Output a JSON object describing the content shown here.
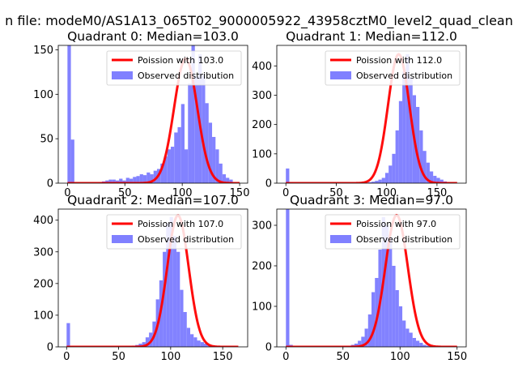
{
  "figure": {
    "suptitle": "n file: modeM0/AS1A13_065T02_9000005922_43958cztM0_level2_quad_clean"
  },
  "chart_data": [
    {
      "type": "bar",
      "title": "Quadrant 0: Median=103.0",
      "xlim": [
        -8,
        157
      ],
      "ylim": [
        0,
        155
      ],
      "xticks": [
        0,
        50,
        100,
        150
      ],
      "xtick_labels": [
        "0",
        "50",
        "100",
        "150"
      ],
      "yticks": [
        0,
        50,
        100,
        150
      ],
      "ytick_labels": [
        "0",
        "50",
        "100",
        "150"
      ],
      "legend_position": "upper right",
      "bins": {
        "start": 0,
        "width": 3,
        "counts": [
          155,
          49,
          0,
          0,
          0,
          0,
          0,
          0,
          0,
          1,
          2,
          3,
          4,
          4,
          3,
          5,
          3,
          6,
          5,
          7,
          8,
          10,
          9,
          12,
          10,
          14,
          16,
          22,
          30,
          38,
          41,
          57,
          63,
          89,
          38,
          112,
          155,
          120,
          145,
          122,
          90,
          68,
          52,
          38,
          22,
          10,
          6,
          4
        ]
      },
      "series": [
        {
          "name": "Poission with 103.0",
          "kind": "line",
          "color": "#ff0000",
          "mean": 103.0,
          "peak": 140,
          "sigma": 10.1,
          "x_range": [
            0,
            150
          ]
        },
        {
          "name": "Observed distribution",
          "kind": "hist",
          "color": "#8080ff"
        }
      ]
    },
    {
      "type": "bar",
      "title": "Quadrant 1: Median=112.0",
      "xlim": [
        -9,
        179
      ],
      "ylim": [
        0,
        470
      ],
      "xticks": [
        0,
        50,
        100,
        150
      ],
      "xtick_labels": [
        "0",
        "50",
        "100",
        "150"
      ],
      "yticks": [
        0,
        100,
        200,
        300,
        400
      ],
      "ytick_labels": [
        "0",
        "100",
        "200",
        "300",
        "400"
      ],
      "legend_position": "upper right",
      "bins": {
        "start": 0,
        "width": 3.4,
        "counts": [
          50,
          3,
          0,
          0,
          0,
          0,
          0,
          0,
          0,
          0,
          0,
          0,
          0,
          0,
          0,
          0,
          0,
          0,
          0,
          0,
          0,
          0,
          0,
          0,
          3,
          5,
          8,
          12,
          18,
          35,
          60,
          100,
          180,
          280,
          380,
          440,
          360,
          300,
          260,
          180,
          110,
          70,
          40,
          25,
          18,
          12,
          6,
          3,
          1,
          0
        ]
      },
      "series": [
        {
          "name": "Poission with 112.0",
          "kind": "line",
          "color": "#ff0000",
          "mean": 112.0,
          "peak": 440,
          "sigma": 10.6,
          "x_range": [
            0,
            170
          ]
        },
        {
          "name": "Observed distribution",
          "kind": "hist",
          "color": "#8080ff"
        }
      ]
    },
    {
      "type": "bar",
      "title": "Quadrant 2: Median=107.0",
      "xlim": [
        -8,
        174
      ],
      "ylim": [
        0,
        435
      ],
      "xticks": [
        0,
        50,
        100,
        150
      ],
      "xtick_labels": [
        "0",
        "50",
        "100",
        "150"
      ],
      "yticks": [
        0,
        100,
        200,
        300,
        400
      ],
      "ytick_labels": [
        "0",
        "100",
        "200",
        "300",
        "400"
      ],
      "legend_position": "upper right",
      "bins": {
        "start": 0,
        "width": 3.3,
        "counts": [
          75,
          2,
          0,
          0,
          0,
          0,
          0,
          0,
          0,
          0,
          0,
          0,
          0,
          0,
          0,
          0,
          1,
          2,
          3,
          4,
          6,
          10,
          15,
          30,
          45,
          80,
          150,
          210,
          300,
          390,
          410,
          350,
          300,
          180,
          110,
          60,
          40,
          30,
          20,
          15,
          10,
          6,
          3,
          2,
          1,
          0,
          0,
          0,
          0,
          0
        ]
      },
      "series": [
        {
          "name": "Poission with 107.0",
          "kind": "line",
          "color": "#ff0000",
          "mean": 107.0,
          "peak": 415,
          "sigma": 10.3,
          "x_range": [
            0,
            165
          ]
        },
        {
          "name": "Observed distribution",
          "kind": "hist",
          "color": "#8080ff"
        }
      ]
    },
    {
      "type": "bar",
      "title": "Quadrant 3: Median=97.0",
      "xlim": [
        -8,
        158
      ],
      "ylim": [
        0,
        340
      ],
      "xticks": [
        0,
        50,
        100,
        150
      ],
      "xtick_labels": [
        "0",
        "50",
        "100",
        "150"
      ],
      "yticks": [
        0,
        100,
        200,
        300
      ],
      "ytick_labels": [
        "0",
        "100",
        "200",
        "300"
      ],
      "legend_position": "upper right",
      "bins": {
        "start": 0,
        "width": 3,
        "counts": [
          340,
          5,
          0,
          0,
          0,
          0,
          0,
          0,
          0,
          0,
          0,
          0,
          0,
          0,
          0,
          0,
          0,
          2,
          3,
          5,
          8,
          15,
          25,
          45,
          80,
          135,
          170,
          240,
          320,
          300,
          270,
          200,
          140,
          100,
          65,
          45,
          35,
          22,
          15,
          10,
          5,
          3,
          1,
          0,
          0,
          0,
          0,
          0,
          0,
          0
        ]
      },
      "series": [
        {
          "name": "Poission with 97.0",
          "kind": "line",
          "color": "#ff0000",
          "mean": 97.0,
          "peak": 325,
          "sigma": 9.85,
          "x_range": [
            0,
            150
          ]
        },
        {
          "name": "Observed distribution",
          "kind": "hist",
          "color": "#8080ff"
        }
      ]
    }
  ]
}
